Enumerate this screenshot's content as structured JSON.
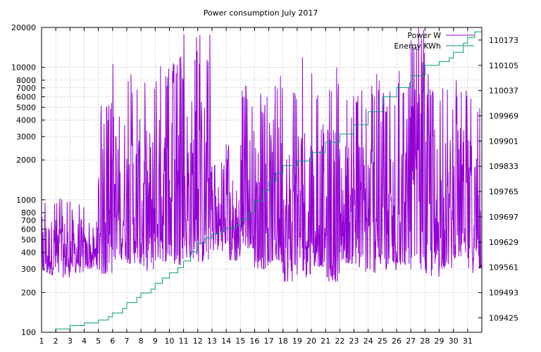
{
  "chart_data": {
    "type": "line",
    "title": "Power consumption July 2017",
    "xlabel": "",
    "ylabel": "",
    "y2label": "",
    "grid": true,
    "legend_position": "top-right",
    "x": {
      "range": [
        1,
        32
      ],
      "tick_values": [
        1,
        2,
        3,
        4,
        5,
        6,
        7,
        8,
        9,
        10,
        11,
        12,
        13,
        14,
        15,
        16,
        17,
        18,
        19,
        20,
        21,
        22,
        23,
        24,
        25,
        26,
        27,
        28,
        29,
        30,
        31
      ],
      "tick_labels": [
        "1",
        "2",
        "3",
        "4",
        "5",
        "6",
        "7",
        "8",
        "9",
        "10",
        "11",
        "12",
        "13",
        "14",
        "15",
        "16",
        "17",
        "18",
        "19",
        "20",
        "21",
        "22",
        "23",
        "24",
        "25",
        "26",
        "27",
        "28",
        "29",
        "30",
        "31"
      ]
    },
    "y_left": {
      "scale": "log",
      "range": [
        100,
        20000
      ],
      "tick_values": [
        100,
        200,
        300,
        400,
        500,
        600,
        700,
        800,
        1000,
        2000,
        3000,
        4000,
        5000,
        6000,
        7000,
        8000,
        10000,
        20000
      ],
      "tick_labels": [
        "100",
        "200",
        "300",
        "400",
        "500",
        "600",
        "700",
        "800",
        "1000",
        "2000",
        "3000",
        "4000",
        "5000",
        "6000",
        "7000",
        "8000",
        "10000",
        "20000"
      ]
    },
    "y_right": {
      "scale": "linear",
      "range": [
        109386,
        110207
      ],
      "tick_values": [
        109425,
        109493,
        109561,
        109629,
        109697,
        109765,
        109833,
        109901,
        109969,
        110037,
        110105,
        110173
      ],
      "tick_labels": [
        "109425",
        "109493",
        "109561",
        "109629",
        "109697",
        "109765",
        "109833",
        "109901",
        "109969",
        "110037",
        "110105",
        "110173"
      ]
    },
    "series": [
      {
        "name": "Power W",
        "axis": "left",
        "color": "#9400d3",
        "style": "high-frequency line; per-day [min, max] envelope estimated",
        "daily_envelope": {
          "day": [
            1,
            2,
            3,
            4,
            5,
            6,
            7,
            8,
            9,
            10,
            11,
            12,
            13,
            14,
            15,
            16,
            17,
            18,
            19,
            20,
            21,
            22,
            23,
            24,
            25,
            26,
            27,
            28,
            29,
            30,
            31
          ],
          "min": [
            270,
            260,
            280,
            300,
            270,
            350,
            330,
            290,
            340,
            320,
            360,
            330,
            410,
            340,
            430,
            300,
            330,
            240,
            260,
            310,
            240,
            330,
            280,
            280,
            280,
            320,
            300,
            260,
            300,
            360,
            280
          ],
          "max": [
            1050,
            1080,
            1000,
            700,
            5500,
            12000,
            9500,
            9000,
            11000,
            12500,
            18000,
            18000,
            2100,
            2700,
            7500,
            6500,
            9500,
            7500,
            12000,
            9000,
            10000,
            6500,
            7000,
            9500,
            7000,
            10000,
            20000,
            10000,
            7000,
            8500,
            7000
          ]
        }
      },
      {
        "name": "Energy KWh",
        "axis": "right",
        "color": "#009e73",
        "style": "cumulative step line",
        "points": {
          "x": [
            1,
            2,
            3,
            4,
            5,
            5.7,
            6,
            6.7,
            7,
            7.7,
            8,
            8.7,
            9,
            9.5,
            10,
            10.6,
            11,
            11.5,
            12,
            12.5,
            13,
            13.7,
            14,
            14.7,
            15,
            15.6,
            16,
            16.6,
            17,
            17.5,
            18,
            19,
            20,
            21,
            22,
            23,
            24,
            25,
            26,
            27,
            28,
            29,
            29.7,
            30,
            30.7,
            31,
            31.5,
            32
          ],
          "y": [
            109386,
            109395,
            109404,
            109411,
            109419,
            109428,
            109438,
            109450,
            109466,
            109480,
            109492,
            109502,
            109518,
            109532,
            109546,
            109560,
            109578,
            109603,
            109626,
            109640,
            109651,
            109660,
            109667,
            109675,
            109690,
            109710,
            109740,
            109768,
            109792,
            109815,
            109835,
            109847,
            109870,
            109898,
            109920,
            109945,
            109980,
            110020,
            110045,
            110077,
            110105,
            110115,
            110125,
            110140,
            110165,
            110180,
            110195,
            110207
          ]
        }
      }
    ]
  }
}
